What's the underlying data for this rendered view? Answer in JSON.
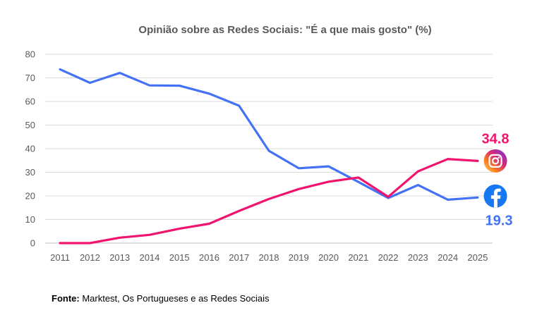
{
  "chart_data": {
    "type": "line",
    "title": "Opinião sobre as Redes Sociais: \"É a que mais gosto\" (%)",
    "xlabel": "",
    "ylabel": "",
    "ylim": [
      0,
      80
    ],
    "yticks": [
      0,
      10,
      20,
      30,
      40,
      50,
      60,
      70,
      80
    ],
    "grid": true,
    "categories": [
      "2011",
      "2012",
      "2013",
      "2014",
      "2015",
      "2016",
      "2017",
      "2018",
      "2019",
      "2020",
      "2021",
      "2022",
      "2023",
      "2024",
      "2025"
    ],
    "series": [
      {
        "name": "Facebook",
        "icon": "facebook-icon",
        "color": "#4472F5",
        "values": [
          73.6,
          67.9,
          72.1,
          66.8,
          66.7,
          63.3,
          58.2,
          39.1,
          31.7,
          32.5,
          25.9,
          19.1,
          24.6,
          18.4,
          19.3
        ],
        "end_label": "19.3"
      },
      {
        "name": "Instagram",
        "icon": "instagram-icon",
        "color": "#F0146E",
        "values": [
          0,
          0,
          2.3,
          3.5,
          6.1,
          8.2,
          13.6,
          18.7,
          22.9,
          26.0,
          27.8,
          19.6,
          30.4,
          35.6,
          34.8
        ],
        "end_label": "34.8"
      }
    ]
  },
  "source": {
    "label": "Fonte:",
    "text": " Marktest, Os Portugueses e as Redes Sociais"
  }
}
